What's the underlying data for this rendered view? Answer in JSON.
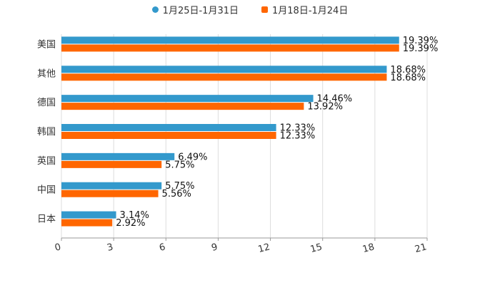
{
  "chart_data": {
    "type": "bar",
    "orientation": "horizontal",
    "title": "",
    "xlabel": "",
    "ylabel": "",
    "xlim": [
      0,
      21
    ],
    "x_ticks": [
      0,
      3,
      6,
      9,
      12,
      15,
      18,
      21
    ],
    "x_tick_labels": [
      "0",
      "3",
      "6",
      "9",
      "12",
      "15",
      "18",
      "21"
    ],
    "categories": [
      "美国",
      "其他",
      "德国",
      "韩国",
      "英国",
      "中国",
      "日本"
    ],
    "series": [
      {
        "name": "1月25日-1月31日",
        "color": "#3399cc",
        "values": [
          19.39,
          18.68,
          14.46,
          12.33,
          6.49,
          5.75,
          3.14
        ],
        "labels": [
          "19.39%",
          "18.68%",
          "14.46%",
          "12.33%",
          "6.49%",
          "5.75%",
          "3.14%"
        ]
      },
      {
        "name": "1月18日-1月24日",
        "color": "#ff6600",
        "values": [
          19.39,
          18.68,
          13.92,
          12.33,
          5.75,
          5.56,
          2.92
        ],
        "labels": [
          "19.39%",
          "18.68%",
          "13.92%",
          "12.33%",
          "5.75%",
          "5.56%",
          "2.92%"
        ]
      }
    ],
    "legend_position": "top-center",
    "grid": true
  }
}
